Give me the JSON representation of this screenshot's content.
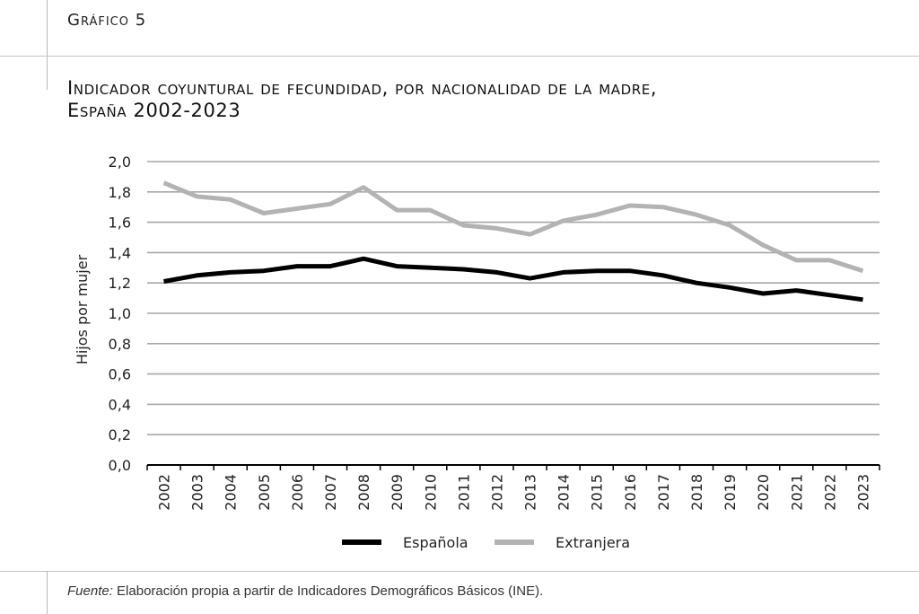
{
  "header": {
    "figure_label": "Gráfico 5",
    "title_line1": "Indicador coyuntural de fecundidad, por nacionalidad de la madre,",
    "title_line2": "España 2002-2023"
  },
  "source": {
    "prefix": "Fuente:",
    "text": "Elaboración propia a partir de Indicadores Demográficos Básicos (INE)."
  },
  "chart_data": {
    "type": "line",
    "title": "Indicador coyuntural de fecundidad, por nacionalidad de la madre, España 2002-2023",
    "xlabel": "",
    "ylabel": "Hijos por mujer",
    "categories": [
      "2002",
      "2003",
      "2004",
      "2005",
      "2006",
      "2007",
      "2008",
      "2009",
      "2010",
      "2011",
      "2012",
      "2013",
      "2014",
      "2015",
      "2016",
      "2017",
      "2018",
      "2019",
      "2020",
      "2021",
      "2022",
      "2023"
    ],
    "ylim": [
      0,
      2.0
    ],
    "yticks": [
      "0,0",
      "0,2",
      "0,4",
      "0,6",
      "0,8",
      "1,0",
      "1,2",
      "1,4",
      "1,6",
      "1,8",
      "2,0"
    ],
    "grid": true,
    "legend_position": "bottom",
    "series": [
      {
        "name": "Española",
        "color": "#000000",
        "values": [
          1.21,
          1.25,
          1.27,
          1.28,
          1.31,
          1.31,
          1.36,
          1.31,
          1.3,
          1.29,
          1.27,
          1.23,
          1.27,
          1.28,
          1.28,
          1.25,
          1.2,
          1.17,
          1.13,
          1.15,
          1.12,
          1.09
        ]
      },
      {
        "name": "Extranjera",
        "color": "#b3b3b3",
        "values": [
          1.86,
          1.77,
          1.75,
          1.66,
          1.69,
          1.72,
          1.83,
          1.68,
          1.68,
          1.58,
          1.56,
          1.52,
          1.61,
          1.65,
          1.71,
          1.7,
          1.65,
          1.58,
          1.45,
          1.35,
          1.35,
          1.28
        ]
      }
    ]
  }
}
